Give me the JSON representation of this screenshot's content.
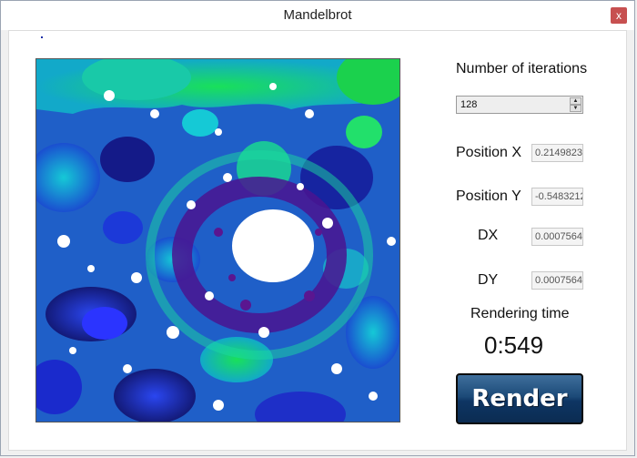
{
  "window": {
    "title": "Mandelbrot",
    "close_glyph": "x"
  },
  "controls": {
    "iterations_label": "Number of iterations",
    "iterations_value": "128",
    "position_x_label": "Position X",
    "position_x_value": "0.2149823",
    "position_y_label": "Position Y",
    "position_y_value": "-0.5483212",
    "dx_label": "DX",
    "dx_value": "0.0007564",
    "dy_label": "DY",
    "dy_value": "0.0007564",
    "rendering_time_label": "Rendering time",
    "rendering_time_value": "0:549",
    "render_button_label": "Render"
  },
  "colors": {
    "fractal_light_green": "#19e05a",
    "fractal_cyan": "#15c9d6",
    "fractal_blue": "#1e3cd8",
    "fractal_dark": "#1a0f6b",
    "fractal_purple": "#5a1690",
    "render_button": "#1c4a78"
  }
}
